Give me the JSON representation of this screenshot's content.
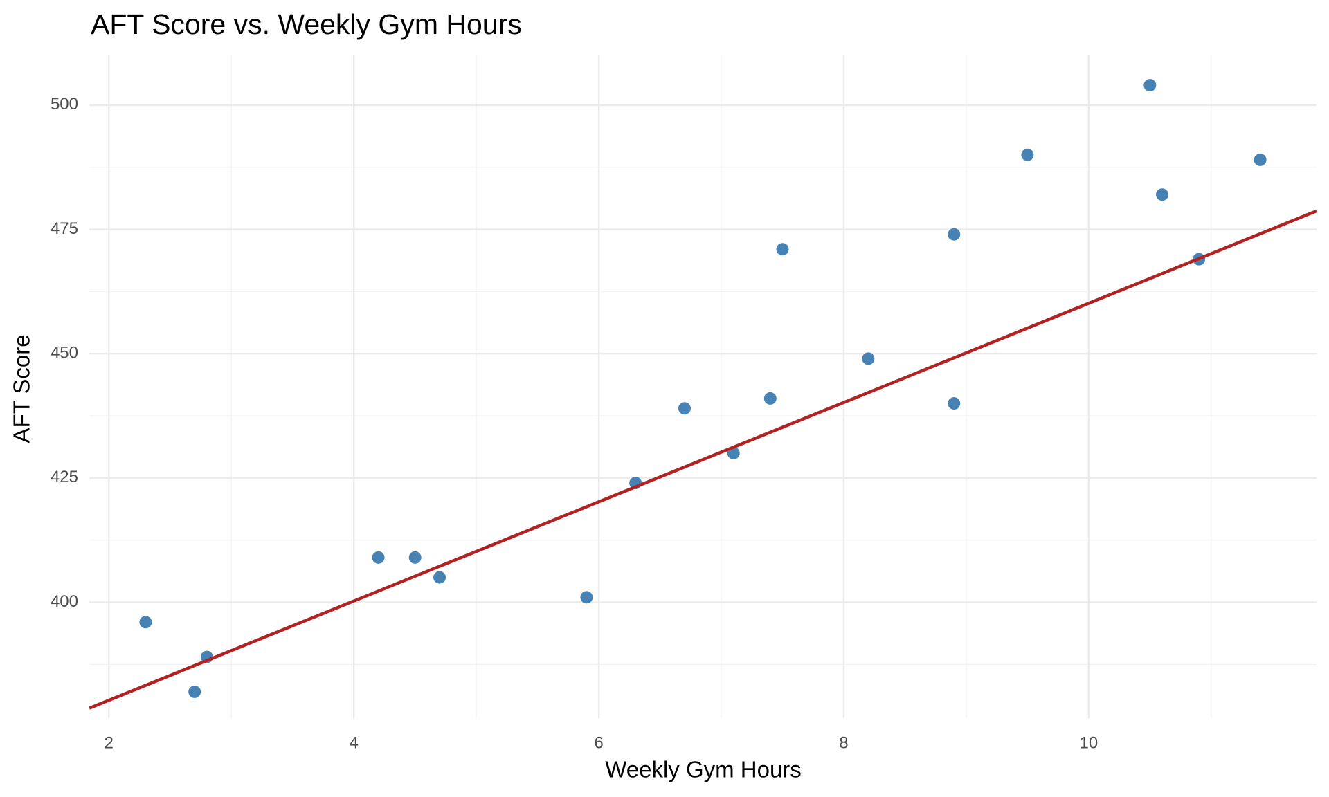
{
  "chart_data": {
    "type": "scatter",
    "title": "AFT Score vs. Weekly Gym Hours",
    "x_label": "Weekly Gym Hours",
    "y_label": "AFT Score",
    "x": [
      2.3,
      2.7,
      2.8,
      4.2,
      4.5,
      4.7,
      5.9,
      6.3,
      6.7,
      7.1,
      7.4,
      7.5,
      8.2,
      8.9,
      8.9,
      9.5,
      10.5,
      10.6,
      10.9,
      11.4
    ],
    "values": [
      396,
      382,
      389,
      409,
      409,
      405,
      401,
      424,
      439,
      430,
      441,
      471,
      449,
      474,
      440,
      490,
      504,
      482,
      469,
      489
    ],
    "color": "#4682b4",
    "trend_line": {
      "x": [
        1.84,
        11.86
      ],
      "y": [
        378.7,
        478.7
      ],
      "color": "#b22222"
    },
    "xlim": [
      1.84,
      11.86
    ],
    "ylim": [
      376.7,
      510
    ],
    "xticks": [
      2,
      4,
      6,
      8,
      10
    ],
    "yticks": [
      400,
      425,
      450,
      475,
      500
    ],
    "x_minor": [
      3,
      5,
      7,
      9,
      11
    ],
    "y_minor": [
      387.5,
      412.5,
      437.5,
      462.5,
      487.5
    ],
    "grid": true
  }
}
